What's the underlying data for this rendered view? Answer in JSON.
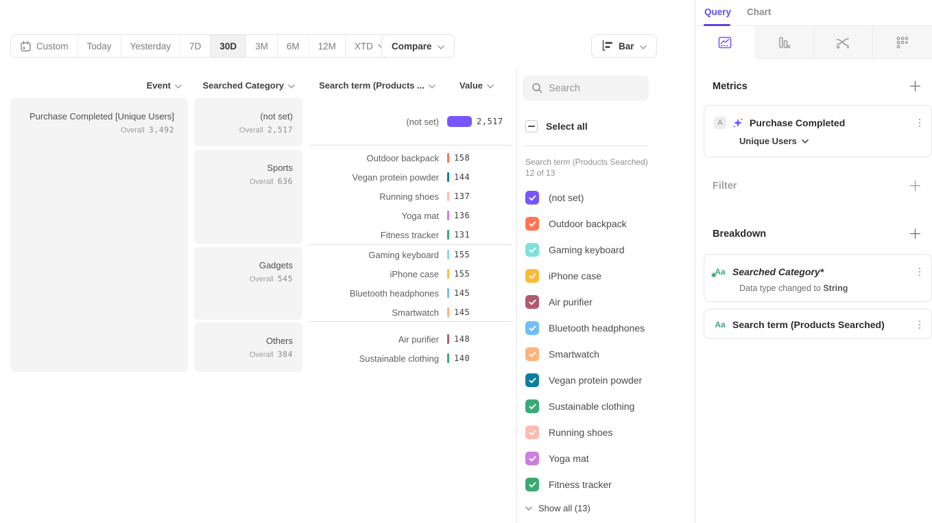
{
  "accent_color": "#7856FF",
  "toolbar": {
    "date_ranges": [
      "Custom",
      "Today",
      "Yesterday",
      "7D",
      "30D",
      "3M",
      "6M",
      "12M",
      "XTD"
    ],
    "active_range": "30D",
    "compare_label": "Compare",
    "chart_type_label": "Bar"
  },
  "table": {
    "columns": {
      "event": "Event",
      "category": "Searched Category",
      "term": "Search term (Products ...",
      "value": "Value"
    },
    "overall_label": "Overall",
    "event": {
      "name": "Purchase Completed [Unique Users]",
      "overall": "3,492"
    },
    "categories": [
      {
        "name": "(not set)",
        "overall": "2,517"
      },
      {
        "name": "Sports",
        "overall": "636"
      },
      {
        "name": "Gadgets",
        "overall": "545"
      },
      {
        "name": "Others",
        "overall": "384"
      }
    ],
    "groups": [
      {
        "rows": [
          {
            "label": "(not set)",
            "value": "2,517",
            "color": "#7856FF",
            "big": true
          }
        ]
      },
      {
        "rows": [
          {
            "label": "Outdoor backpack",
            "value": "158",
            "color": "#FF7557"
          },
          {
            "label": "Vegan protein powder",
            "value": "144",
            "color": "#0D7EA0"
          },
          {
            "label": "Running shoes",
            "value": "137",
            "color": "#FEBBB2"
          },
          {
            "label": "Yoga mat",
            "value": "136",
            "color": "#CA80DC"
          },
          {
            "label": "Fitness tracker",
            "value": "131",
            "color": "#3BA974"
          }
        ]
      },
      {
        "rows": [
          {
            "label": "Gaming keyboard",
            "value": "155",
            "color": "#80E1D9"
          },
          {
            "label": "iPhone case",
            "value": "155",
            "color": "#F8BC3B"
          },
          {
            "label": "Bluetooth headphones",
            "value": "145",
            "color": "#72BEF4"
          },
          {
            "label": "Smartwatch",
            "value": "145",
            "color": "#FFB27A"
          }
        ]
      },
      {
        "rows": [
          {
            "label": "Air purifier",
            "value": "148",
            "color": "#B2596E"
          },
          {
            "label": "Sustainable clothing",
            "value": "140",
            "color": "#3BA974"
          }
        ]
      }
    ]
  },
  "chart_data": {
    "type": "bar",
    "title": "Purchase Completed [Unique Users] by Searched Category and Search term",
    "categories": [
      "(not set)",
      "Outdoor backpack",
      "Vegan protein powder",
      "Running shoes",
      "Yoga mat",
      "Fitness tracker",
      "Gaming keyboard",
      "iPhone case",
      "Bluetooth headphones",
      "Smartwatch",
      "Air purifier",
      "Sustainable clothing"
    ],
    "values": [
      2517,
      158,
      144,
      137,
      136,
      131,
      155,
      155,
      145,
      145,
      148,
      140
    ],
    "group_totals": {
      "(not set)": 2517,
      "Sports": 636,
      "Gadgets": 545,
      "Others": 384,
      "Overall": 3492
    }
  },
  "legend": {
    "search_placeholder": "Search",
    "select_all_label": "Select all",
    "group_label": "Search term (Products Searched) 12 of 13",
    "items": [
      {
        "label": "(not set)",
        "color": "#7856FF",
        "pattern": false
      },
      {
        "label": "Outdoor backpack",
        "color": "#FF7557",
        "pattern": false
      },
      {
        "label": "Gaming keyboard",
        "color": "#80E1D9",
        "pattern": false
      },
      {
        "label": "iPhone case",
        "color": "#F8BC3B",
        "pattern": false
      },
      {
        "label": "Air purifier",
        "color": "#B2596E",
        "pattern": false
      },
      {
        "label": "Bluetooth headphones",
        "color": "#72BEF4",
        "pattern": false
      },
      {
        "label": "Smartwatch",
        "color": "#FFB27A",
        "pattern": false
      },
      {
        "label": "Vegan protein powder",
        "color": "#0D7EA0",
        "pattern": false
      },
      {
        "label": "Sustainable clothing",
        "color": "#3BA974",
        "pattern": false
      },
      {
        "label": "Running shoes",
        "color": "#FEBBB2",
        "pattern": false
      },
      {
        "label": "Yoga mat",
        "color": "#CA80DC",
        "pattern": false
      },
      {
        "label": "Fitness tracker",
        "color": "#3BA974",
        "pattern": true
      }
    ],
    "show_all_label": "Show all (13)"
  },
  "query_panel": {
    "tabs": [
      {
        "label": "Query"
      },
      {
        "label": "Chart"
      }
    ],
    "icon_tabs": [
      "insights",
      "funnel",
      "flows",
      "retention"
    ],
    "metrics": {
      "header": "Metrics",
      "card": {
        "badge": "A",
        "title": "Purchase Completed",
        "subtitle": "Unique Users"
      }
    },
    "filter": {
      "header": "Filter"
    },
    "breakdown": {
      "header": "Breakdown",
      "cards": [
        {
          "icon": "Aa",
          "title": "Searched Category*",
          "italic": true,
          "modified": true,
          "subtitle_prefix": "Data type changed to ",
          "subtitle_bold": "String"
        },
        {
          "icon": "Aa",
          "title": "Search term (Products Searched)",
          "italic": false,
          "modified": false
        }
      ]
    }
  }
}
